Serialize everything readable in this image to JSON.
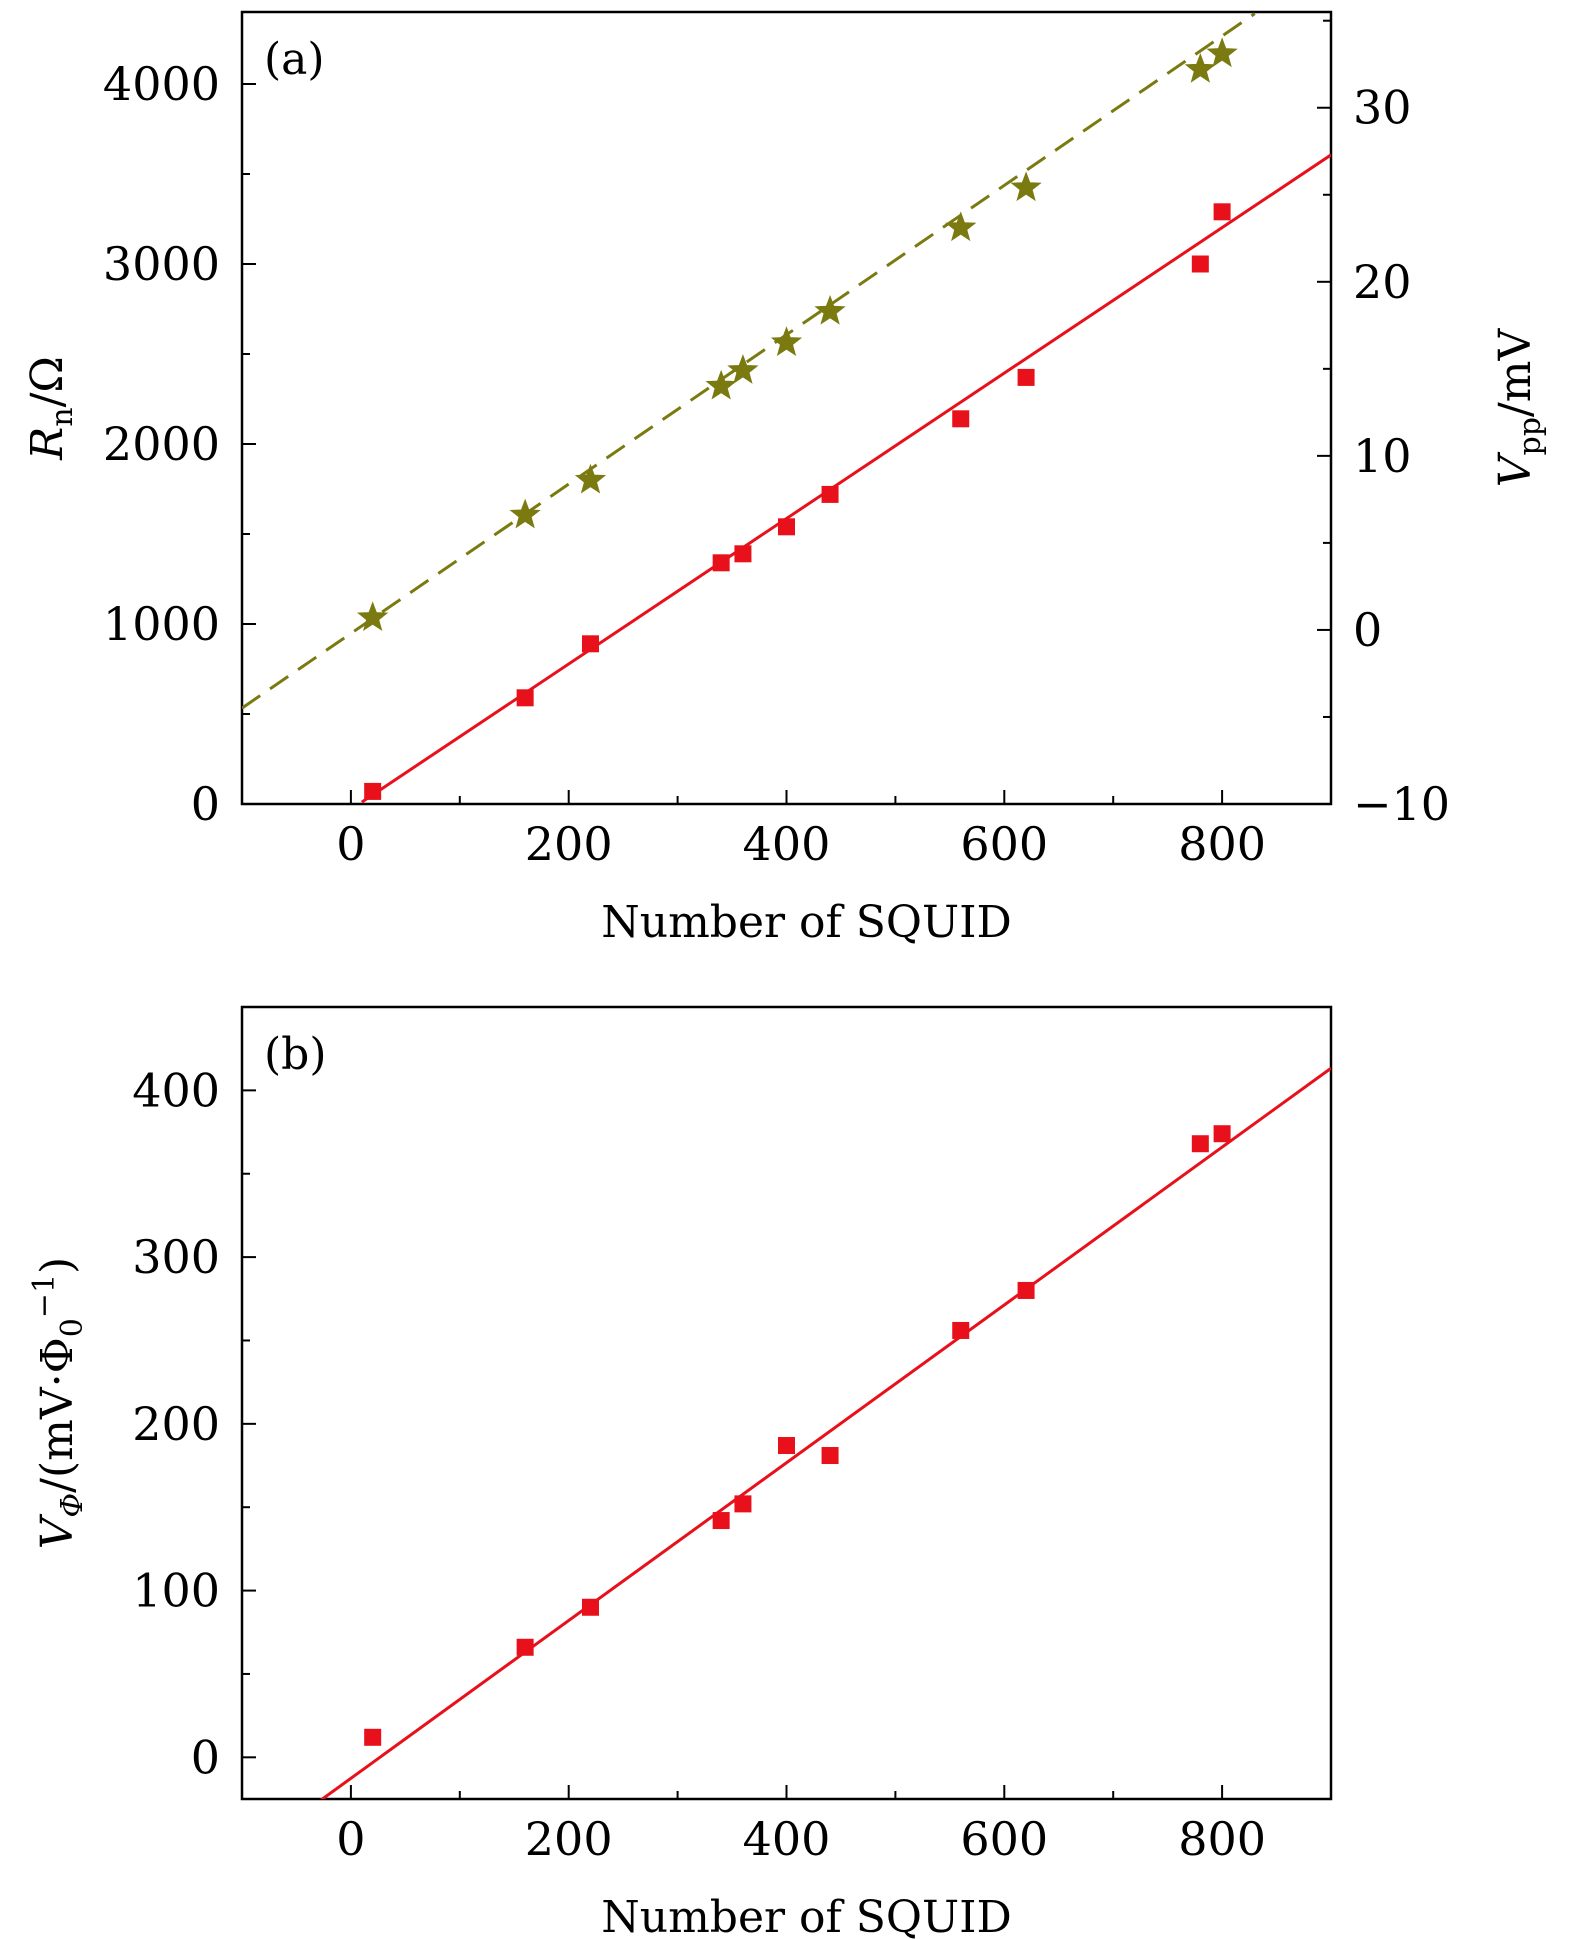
{
  "chart_data": [
    {
      "panel": "(a)",
      "type": "scatter",
      "xlabel": "Number of SQUID",
      "xlim": [
        -100,
        900
      ],
      "xticks": [
        "0",
        "200",
        "400",
        "600",
        "800"
      ],
      "left_axis": {
        "label_main": "R",
        "label_sub": "n",
        "label_unit": "/Ω",
        "ylim": [
          0,
          4400
        ],
        "ticks": [
          "0",
          "1000",
          "2000",
          "3000",
          "4000"
        ]
      },
      "right_axis": {
        "label_main": "V",
        "label_sub": "pp",
        "label_unit": "/mV",
        "ylim": [
          -10,
          35.5
        ],
        "ticks": [
          "−10",
          "0",
          "10",
          "20",
          "30"
        ]
      },
      "series": [
        {
          "name": "Rn",
          "axis": "left",
          "marker": "square",
          "color": "#e8101a",
          "x": [
            20,
            160,
            220,
            340,
            360,
            400,
            440,
            560,
            620,
            780,
            800
          ],
          "values": [
            70,
            590,
            890,
            1340,
            1390,
            1540,
            1720,
            2140,
            2370,
            3000,
            3290
          ],
          "fit": {
            "style": "solid",
            "color": "#e8101a",
            "slope": 4.04,
            "intercept": -30,
            "x_range": [
              10,
              900
            ]
          }
        },
        {
          "name": "Vpp",
          "axis": "right",
          "marker": "star",
          "color": "#7a7a10",
          "x": [
            20,
            160,
            220,
            340,
            360,
            400,
            440,
            560,
            620,
            780,
            800
          ],
          "values": [
            0.7,
            6.6,
            8.6,
            14.0,
            14.9,
            16.5,
            18.3,
            23.1,
            25.4,
            32.2,
            33.1
          ],
          "fit": {
            "style": "dashed",
            "color": "#7a7a10",
            "slope": 0.0429,
            "intercept": -0.2,
            "x_range": [
              -100,
              830
            ]
          }
        }
      ]
    },
    {
      "panel": "(b)",
      "type": "scatter",
      "xlabel": "Number of SQUID",
      "xlim": [
        -100,
        900
      ],
      "xticks": [
        "0",
        "200",
        "400",
        "600",
        "800"
      ],
      "left_axis": {
        "label_main": "V",
        "label_sub": "Φ",
        "label_unit": "/(mV·Φ",
        "label_sub2": "0",
        "label_sup": "−1",
        "label_close": ")",
        "ylim": [
          -25,
          450
        ],
        "ticks": [
          "0",
          "100",
          "200",
          "300",
          "400"
        ]
      },
      "series": [
        {
          "name": "VΦ",
          "marker": "square",
          "color": "#e8101a",
          "x": [
            20,
            160,
            220,
            340,
            360,
            400,
            440,
            560,
            620,
            780,
            800
          ],
          "values": [
            12,
            66,
            90,
            142,
            152,
            187,
            181,
            256,
            280,
            368,
            374
          ],
          "fit": {
            "style": "solid",
            "color": "#e8101a",
            "slope": 0.4732,
            "intercept": -12.6,
            "x_range": [
              -30,
              900
            ]
          }
        }
      ]
    }
  ]
}
